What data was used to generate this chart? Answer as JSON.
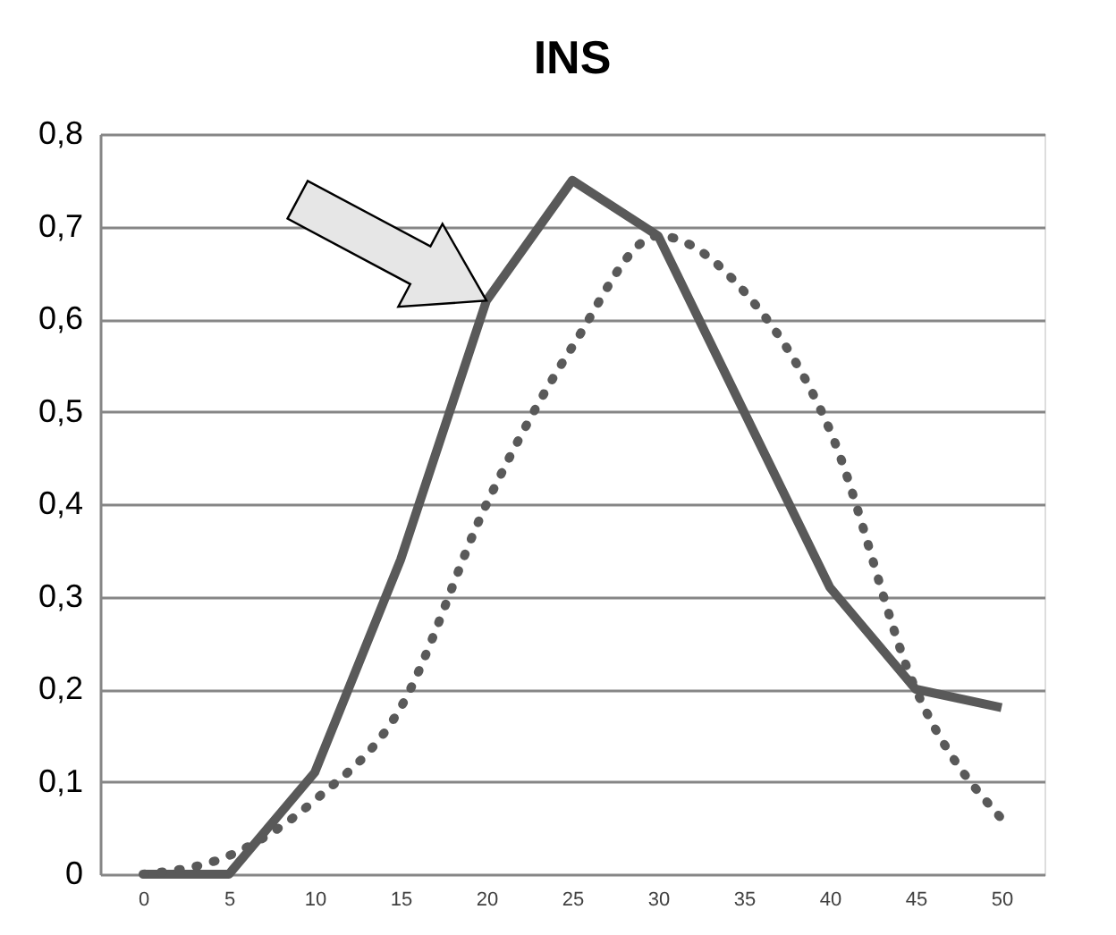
{
  "chart_data": {
    "type": "line",
    "title": "INS",
    "categories": [
      "0",
      "5",
      "10",
      "15",
      "20",
      "25",
      "30",
      "35",
      "40",
      "45",
      "50"
    ],
    "series": [
      {
        "color": "#595959",
        "line_style": "solid",
        "values": [
          0,
          0,
          0.11,
          0.34,
          0.62,
          0.75,
          0.69,
          0.5,
          0.31,
          0.2,
          0.18
        ]
      },
      {
        "color": "#595959",
        "line_style": "dotted",
        "values": [
          0,
          0.02,
          0.08,
          0.18,
          0.4,
          0.57,
          0.69,
          0.63,
          0.48,
          0.2,
          0.06
        ]
      }
    ],
    "ylim": [
      0,
      0.8
    ],
    "yticks": [
      0,
      {
        "value": 0.1,
        "label": "0,1"
      },
      {
        "value": 0.2,
        "label": "0,2"
      },
      {
        "value": 0.3,
        "label": "0,3"
      },
      {
        "value": 0.4,
        "label": "0,4"
      },
      {
        "value": 0.5,
        "label": "0,5"
      },
      {
        "value": 0.6,
        "label": "0,6"
      },
      {
        "value": 0.7,
        "label": "0,7"
      },
      {
        "value": 0.8,
        "label": "0,8"
      }
    ],
    "grid": "y",
    "marker": "none"
  }
}
